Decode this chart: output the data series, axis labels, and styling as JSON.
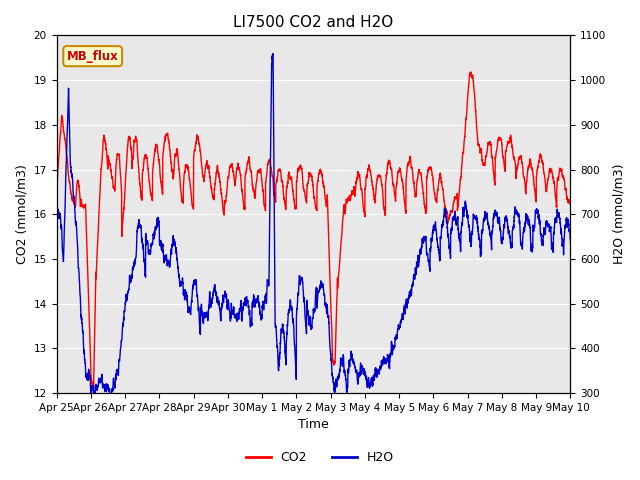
{
  "title": "LI7500 CO2 and H2O",
  "xlabel": "Time",
  "ylabel_left": "CO2 (mmol/m3)",
  "ylabel_right": "H2O (mmol/m3)",
  "co2_ylim": [
    12.0,
    20.0
  ],
  "h2o_ylim": [
    300,
    1100
  ],
  "co2_color": "#ff0000",
  "h2o_color": "#0000cc",
  "fig_facecolor": "#ffffff",
  "plot_facecolor": "#e8e8e8",
  "annotation_text": "MB_flux",
  "annotation_bg": "#ffffcc",
  "annotation_border": "#cc8800",
  "legend_co2": "CO2",
  "legend_h2o": "H2O",
  "xtick_labels": [
    "Apr 25",
    "Apr 26",
    "Apr 27",
    "Apr 28",
    "Apr 29",
    "Apr 30",
    "May 1",
    "May 2",
    "May 3",
    "May 4",
    "May 5",
    "May 6",
    "May 7",
    "May 8",
    "May 9",
    "May 10"
  ],
  "title_fontsize": 11,
  "axis_label_fontsize": 9,
  "tick_fontsize": 7.5,
  "line_width": 1.0,
  "grid_color": "#ffffff",
  "n_days": 15
}
